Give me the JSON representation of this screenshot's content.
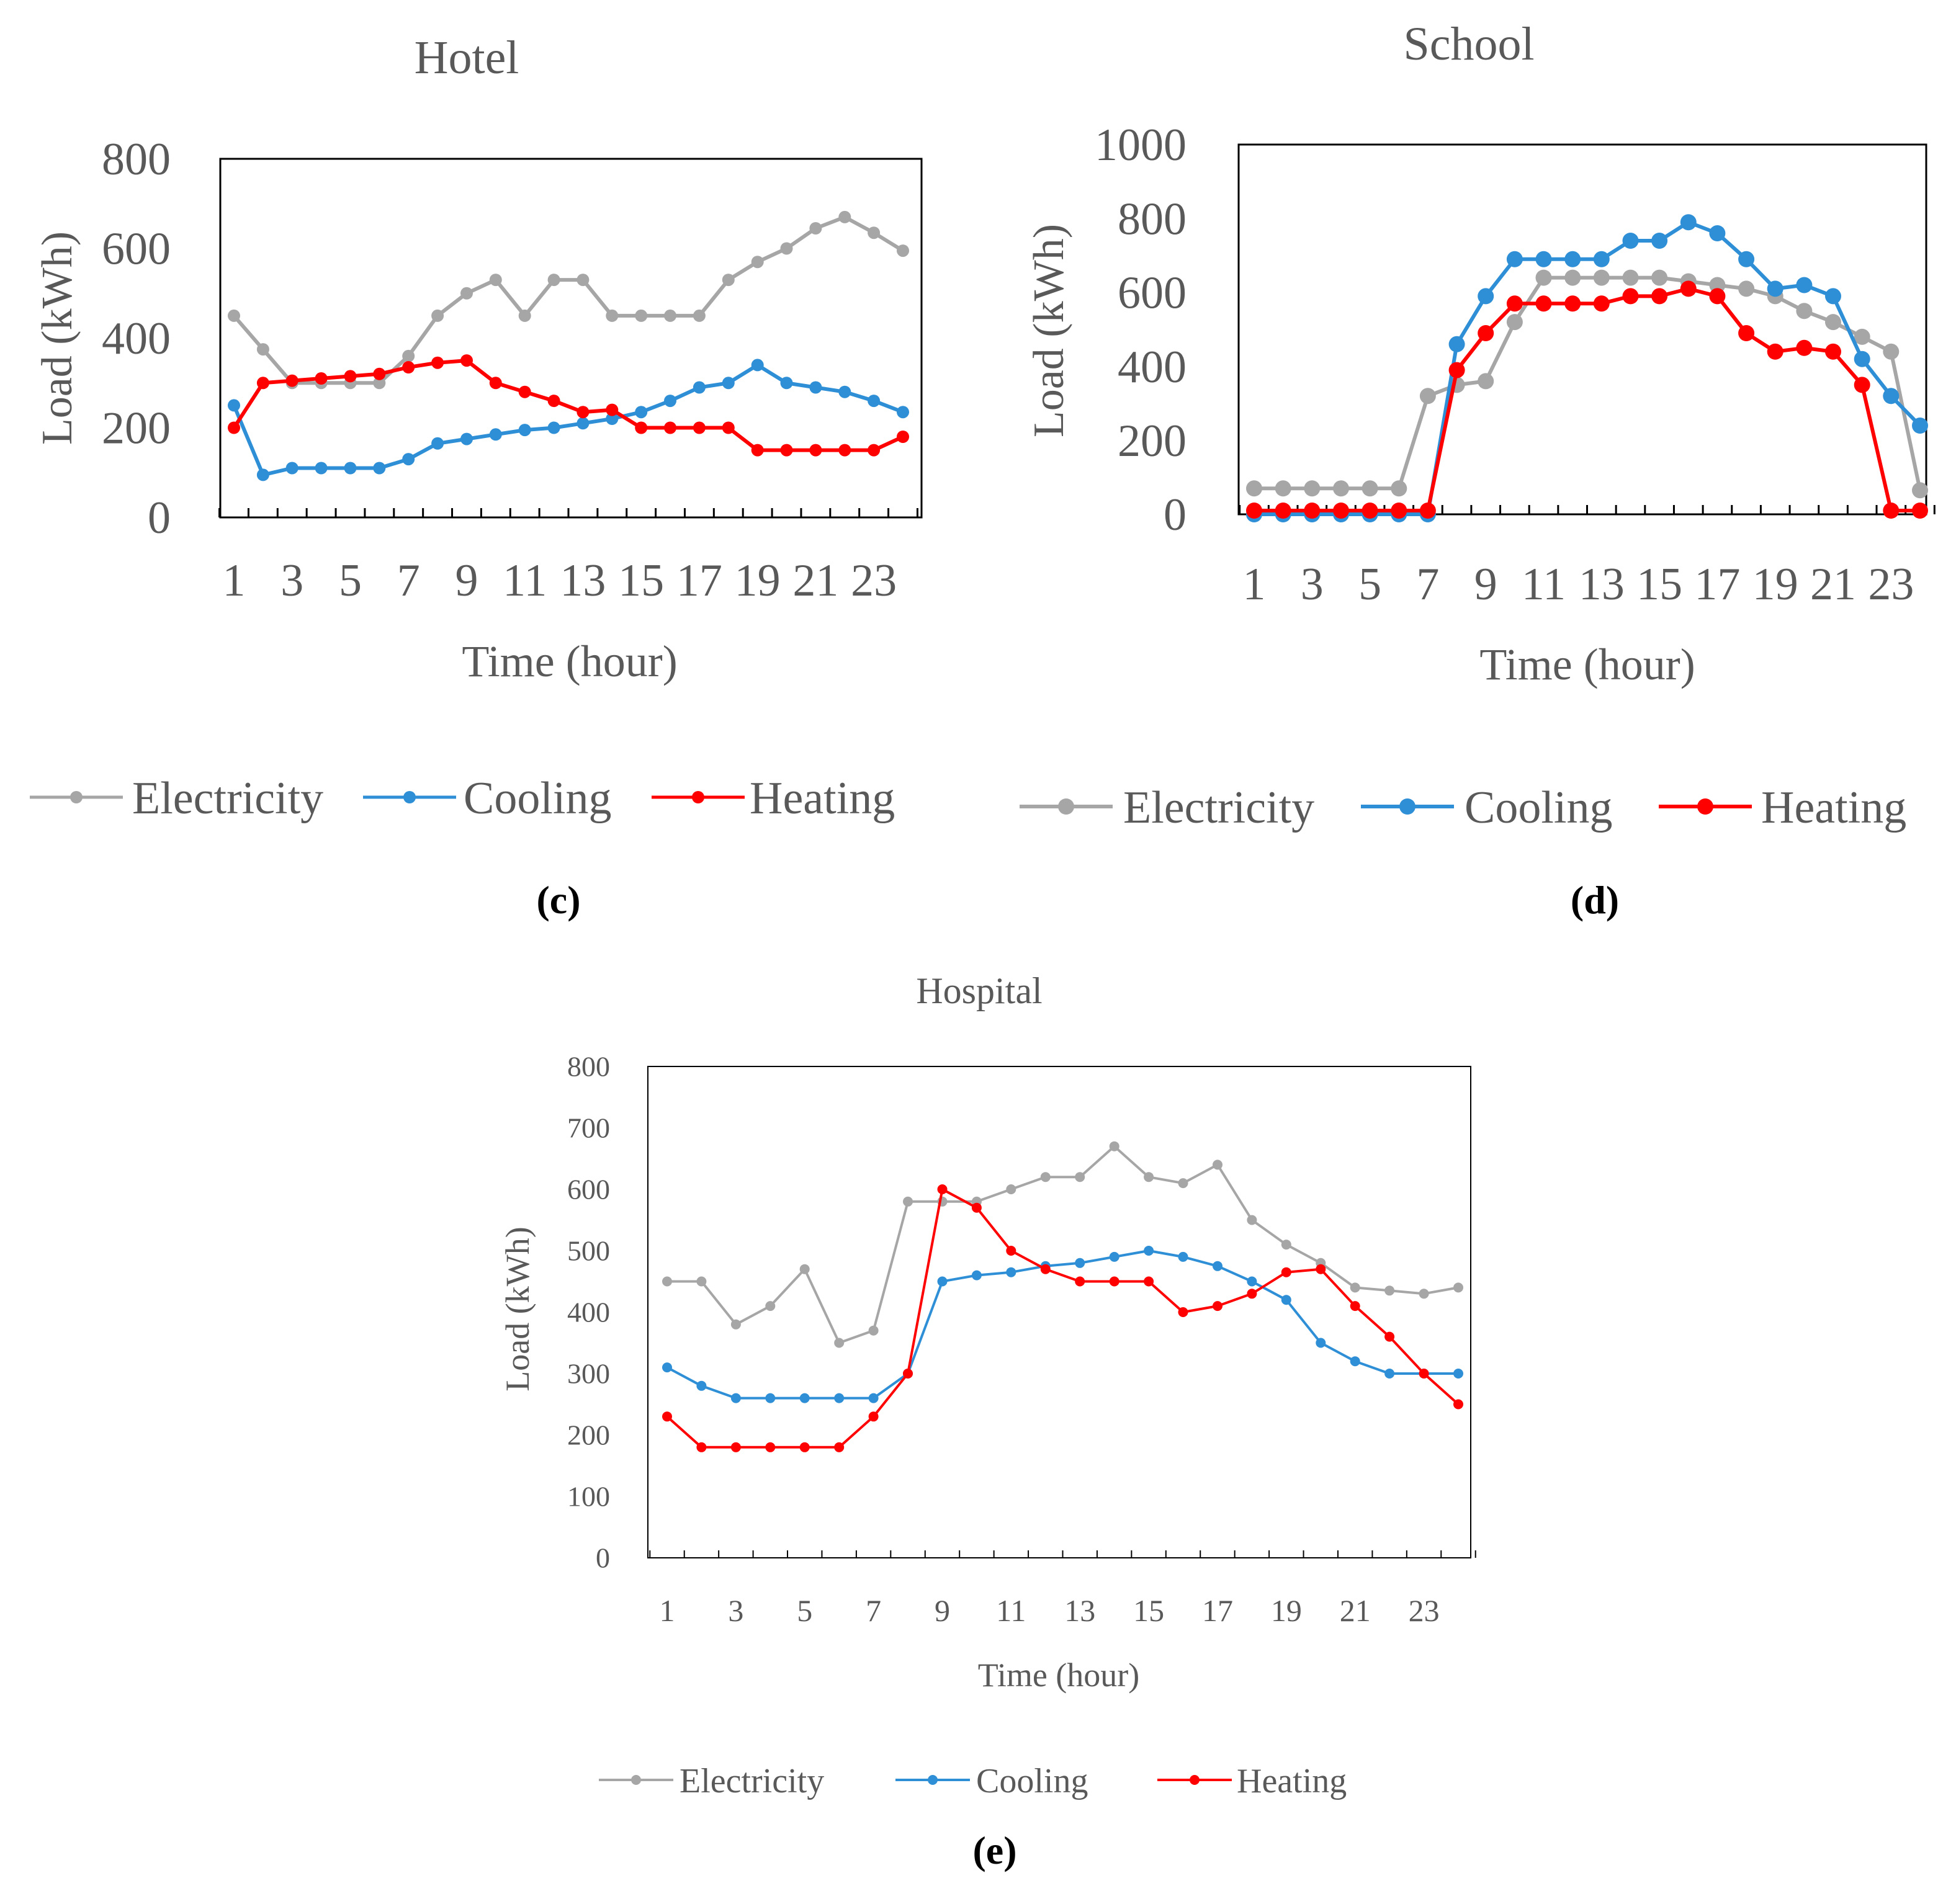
{
  "figure": {
    "colors": {
      "electricity": "#A6A6A6",
      "cooling": "#2E8FD6",
      "heating": "#FF0000",
      "text": "#595959"
    }
  },
  "chart_data": [
    {
      "type": "line",
      "panel_label": "(c)",
      "title": "Hotel",
      "xlabel": "Time (hour)",
      "ylabel": "Load (kWh)",
      "ylim": [
        0,
        800
      ],
      "yticks": [
        0,
        200,
        400,
        600,
        800
      ],
      "x": [
        1,
        2,
        3,
        4,
        5,
        6,
        7,
        8,
        9,
        10,
        11,
        12,
        13,
        14,
        15,
        16,
        17,
        18,
        19,
        20,
        21,
        22,
        23,
        24
      ],
      "xtick_labels": [
        "1",
        "3",
        "5",
        "7",
        "9",
        "11",
        "13",
        "15",
        "17",
        "19",
        "21",
        "23"
      ],
      "grid": false,
      "legend_position": "bottom",
      "series": [
        {
          "name": "Electricity",
          "color_key": "electricity",
          "values": [
            450,
            375,
            300,
            300,
            300,
            300,
            360,
            450,
            500,
            530,
            450,
            530,
            530,
            450,
            450,
            450,
            450,
            530,
            570,
            600,
            645,
            670,
            635,
            595
          ]
        },
        {
          "name": "Cooling",
          "color_key": "cooling",
          "values": [
            250,
            95,
            110,
            110,
            110,
            110,
            130,
            165,
            175,
            185,
            195,
            200,
            210,
            220,
            235,
            260,
            290,
            300,
            340,
            300,
            290,
            280,
            260,
            235
          ]
        },
        {
          "name": "Heating",
          "color_key": "heating",
          "values": [
            200,
            300,
            305,
            310,
            315,
            320,
            335,
            345,
            350,
            300,
            280,
            260,
            235,
            240,
            200,
            200,
            200,
            200,
            150,
            150,
            150,
            150,
            150,
            180
          ]
        }
      ]
    },
    {
      "type": "line",
      "panel_label": "(d)",
      "title": "School",
      "xlabel": "Time (hour)",
      "ylabel": "Load (kWh)",
      "ylim": [
        0,
        1000
      ],
      "yticks": [
        0,
        200,
        400,
        600,
        800,
        1000
      ],
      "x": [
        1,
        2,
        3,
        4,
        5,
        6,
        7,
        8,
        9,
        10,
        11,
        12,
        13,
        14,
        15,
        16,
        17,
        18,
        19,
        20,
        21,
        22,
        23,
        24
      ],
      "xtick_labels": [
        "1",
        "3",
        "5",
        "7",
        "9",
        "11",
        "13",
        "15",
        "17",
        "19",
        "21",
        "23"
      ],
      "grid": false,
      "legend_position": "bottom",
      "series": [
        {
          "name": "Electricity",
          "color_key": "electricity",
          "values": [
            70,
            70,
            70,
            70,
            70,
            70,
            320,
            350,
            360,
            520,
            640,
            640,
            640,
            640,
            640,
            630,
            620,
            610,
            590,
            550,
            520,
            480,
            440,
            65
          ]
        },
        {
          "name": "Cooling",
          "color_key": "cooling",
          "values": [
            0,
            0,
            0,
            0,
            0,
            0,
            0,
            460,
            590,
            690,
            690,
            690,
            690,
            740,
            740,
            790,
            760,
            690,
            610,
            620,
            590,
            420,
            320,
            240
          ]
        },
        {
          "name": "Heating",
          "color_key": "heating",
          "values": [
            10,
            10,
            10,
            10,
            10,
            10,
            10,
            390,
            490,
            570,
            570,
            570,
            570,
            590,
            590,
            610,
            590,
            490,
            440,
            450,
            440,
            350,
            10,
            10
          ]
        }
      ]
    },
    {
      "type": "line",
      "panel_label": "(e)",
      "title": "Hospital",
      "xlabel": "Time (hour)",
      "ylabel": "Load (kWh)",
      "ylim": [
        0,
        800
      ],
      "yticks": [
        0,
        100,
        200,
        300,
        400,
        500,
        600,
        700,
        800
      ],
      "x": [
        1,
        2,
        3,
        4,
        5,
        6,
        7,
        8,
        9,
        10,
        11,
        12,
        13,
        14,
        15,
        16,
        17,
        18,
        19,
        20,
        21,
        22,
        23,
        24
      ],
      "xtick_labels": [
        "1",
        "3",
        "5",
        "7",
        "9",
        "11",
        "13",
        "15",
        "17",
        "19",
        "21",
        "23"
      ],
      "grid": false,
      "legend_position": "bottom",
      "series": [
        {
          "name": "Electricity",
          "color_key": "electricity",
          "values": [
            450,
            450,
            380,
            410,
            470,
            350,
            370,
            580,
            580,
            580,
            600,
            620,
            620,
            670,
            620,
            610,
            640,
            550,
            510,
            480,
            440,
            435,
            430,
            440
          ]
        },
        {
          "name": "Cooling",
          "color_key": "cooling",
          "values": [
            310,
            280,
            260,
            260,
            260,
            260,
            260,
            300,
            450,
            460,
            465,
            475,
            480,
            490,
            500,
            490,
            475,
            450,
            420,
            350,
            320,
            300,
            300,
            300
          ]
        },
        {
          "name": "Heating",
          "color_key": "heating",
          "values": [
            230,
            180,
            180,
            180,
            180,
            180,
            230,
            300,
            600,
            570,
            500,
            470,
            450,
            450,
            450,
            400,
            410,
            430,
            465,
            470,
            410,
            360,
            300,
            250
          ]
        }
      ]
    }
  ]
}
